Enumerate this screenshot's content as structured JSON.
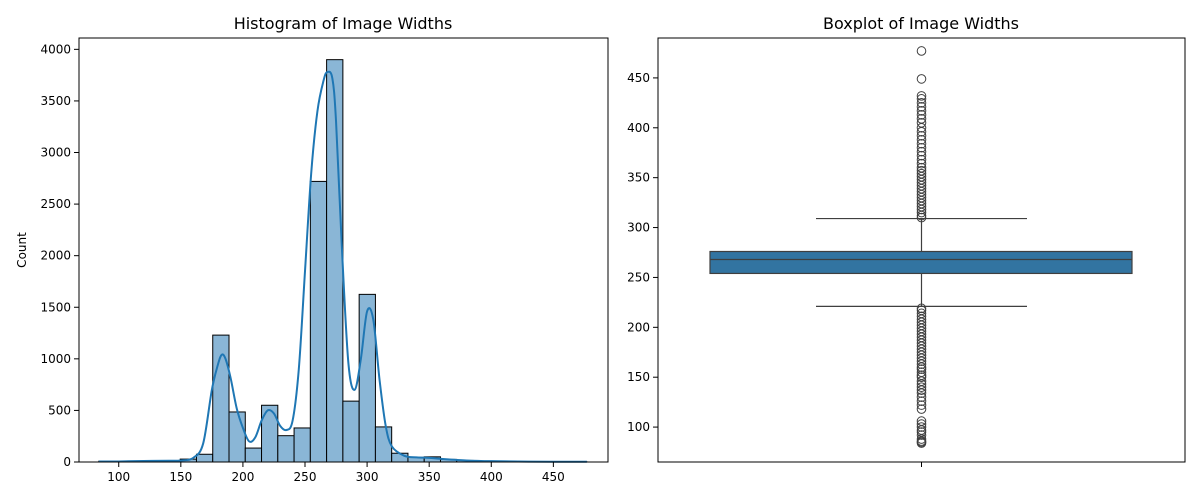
{
  "chart_data": [
    {
      "type": "bar",
      "subtype": "histogram",
      "title": "Histogram of Image Widths",
      "xlabel": "",
      "ylabel": "Count",
      "xlim": [
        68,
        494
      ],
      "ylim": [
        0,
        4110
      ],
      "xticks": [
        100,
        150,
        200,
        250,
        300,
        350,
        400,
        450
      ],
      "yticks": [
        0,
        500,
        1000,
        1500,
        2000,
        2500,
        3000,
        3500,
        4000
      ],
      "bin_edges": [
        84,
        97.1,
        110.2,
        123.3,
        136.4,
        149.5,
        162.6,
        175.7,
        188.8,
        201.9,
        215,
        228.1,
        241.2,
        254.3,
        267.4,
        280.5,
        293.6,
        306.7,
        319.8,
        332.9,
        346,
        359.1,
        372.2,
        385.3,
        398.4,
        411.5,
        424.6,
        437.7,
        450.8,
        463.9,
        477
      ],
      "counts": [
        8,
        4,
        6,
        14,
        10,
        28,
        75,
        1230,
        485,
        135,
        550,
        255,
        330,
        2720,
        3900,
        590,
        1625,
        340,
        85,
        45,
        50,
        25,
        15,
        10,
        8,
        5,
        4,
        3,
        2,
        2
      ],
      "bar_color": "#8ab6d6",
      "edge_color": "#000000",
      "kde": {
        "color": "#1f77b4",
        "x": [
          84,
          100,
          120,
          140,
          150,
          160,
          168,
          175,
          180,
          183,
          186,
          190,
          195,
          200,
          205,
          210,
          215,
          220,
          225,
          230,
          235,
          240,
          245,
          250,
          255,
          260,
          265,
          268,
          272,
          275,
          280,
          285,
          290,
          295,
          300,
          305,
          310,
          315,
          320,
          330,
          340,
          350,
          360,
          380,
          400,
          430,
          477
        ],
        "y": [
          5,
          5,
          10,
          12,
          15,
          40,
          180,
          700,
          950,
          1040,
          1000,
          820,
          520,
          330,
          200,
          240,
          400,
          500,
          470,
          350,
          310,
          400,
          900,
          1850,
          2800,
          3400,
          3700,
          3780,
          3720,
          3300,
          2000,
          950,
          700,
          1000,
          1460,
          1380,
          800,
          350,
          150,
          60,
          45,
          40,
          30,
          15,
          8,
          4,
          2
        ]
      }
    },
    {
      "type": "box",
      "title": "Boxplot of Image Widths",
      "xlabel": "",
      "ylabel": "",
      "ylim": [
        65,
        490
      ],
      "yticks": [
        100,
        150,
        200,
        250,
        300,
        350,
        400,
        450
      ],
      "box_color": "#3274a1",
      "q1": 254,
      "median": 268,
      "q3": 276,
      "whisker_low": 221,
      "whisker_high": 309,
      "outliers": [
        84,
        85,
        86,
        88,
        92,
        95,
        97,
        100,
        103,
        106,
        118,
        122,
        126,
        130,
        134,
        137,
        140,
        143,
        146,
        150,
        152,
        155,
        158,
        160,
        163,
        166,
        169,
        172,
        175,
        178,
        181,
        184,
        187,
        190,
        193,
        196,
        199,
        202,
        205,
        208,
        211,
        214,
        217,
        219,
        310,
        312,
        315,
        318,
        321,
        324,
        327,
        330,
        333,
        336,
        339,
        342,
        345,
        348,
        351,
        354,
        357,
        360,
        364,
        368,
        372,
        376,
        380,
        384,
        388,
        392,
        396,
        400,
        405,
        409,
        413,
        417,
        421,
        425,
        429,
        432,
        449,
        477
      ]
    }
  ]
}
